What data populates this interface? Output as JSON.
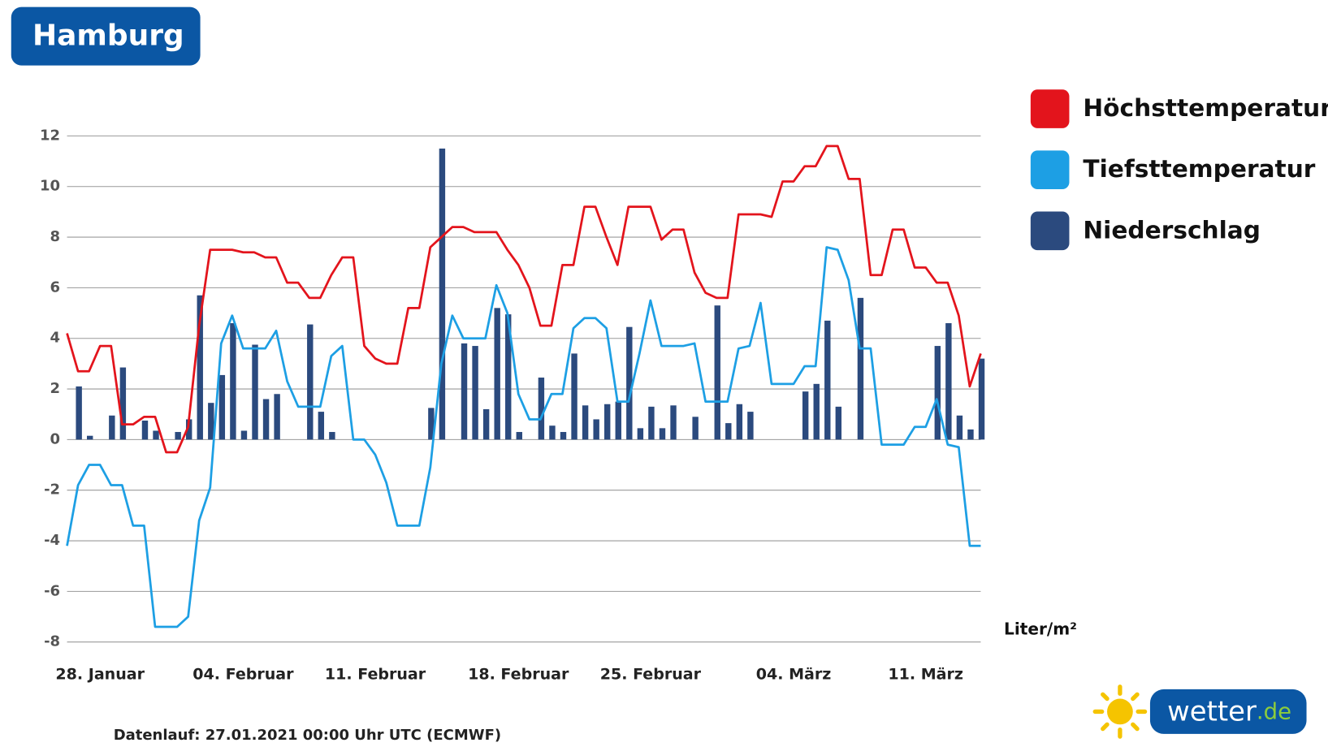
{
  "chart_data": {
    "type": "combo",
    "title": "Hamburg",
    "unit_label": "Liter/m²",
    "note": "Datenlauf: 27.01.2021 00:00 Uhr UTC (ECMWF)",
    "logo": {
      "name": "wetter",
      "tld": ".de"
    },
    "grid": true,
    "legend": "right",
    "ylim": [
      -8,
      12
    ],
    "yticks": [
      -8,
      -6,
      -4,
      -2,
      0,
      2,
      4,
      6,
      8,
      10,
      12
    ],
    "categories": [
      null,
      null,
      null,
      "28. Januar",
      null,
      null,
      null,
      null,
      null,
      null,
      null,
      null,
      null,
      null,
      null,
      null,
      "04. Februar",
      null,
      null,
      null,
      null,
      null,
      null,
      null,
      null,
      null,
      null,
      null,
      "11. Februar",
      null,
      null,
      null,
      null,
      null,
      null,
      null,
      null,
      null,
      null,
      null,
      null,
      "18. Februar",
      null,
      null,
      null,
      null,
      null,
      null,
      null,
      null,
      null,
      null,
      null,
      "25. Februar",
      null,
      null,
      null,
      null,
      null,
      null,
      null,
      null,
      null,
      null,
      null,
      null,
      "04. März",
      null,
      null,
      null,
      null,
      null,
      null,
      null,
      null,
      null,
      null,
      null,
      "11. März",
      null,
      null,
      null,
      null,
      null
    ],
    "series": [
      {
        "name": "Höchsttemperatur",
        "type": "line",
        "color": "#e3141c",
        "values": [
          4.2,
          2.7,
          2.7,
          3.7,
          3.7,
          0.6,
          0.6,
          0.9,
          0.9,
          -0.5,
          -0.5,
          0.5,
          4.5,
          7.5,
          7.5,
          7.5,
          7.4,
          7.4,
          7.2,
          7.2,
          6.2,
          6.2,
          5.6,
          5.6,
          6.5,
          7.2,
          7.2,
          3.7,
          3.2,
          3.0,
          3.0,
          5.2,
          5.2,
          7.6,
          8.0,
          8.4,
          8.4,
          8.2,
          8.2,
          8.2,
          7.5,
          6.9,
          6.0,
          4.5,
          4.5,
          6.9,
          6.9,
          9.2,
          9.2,
          8.0,
          6.9,
          9.2,
          9.2,
          9.2,
          7.9,
          8.3,
          8.3,
          6.6,
          5.8,
          5.6,
          5.6,
          8.9,
          8.9,
          8.9,
          8.8,
          10.2,
          10.2,
          10.8,
          10.8,
          11.6,
          11.6,
          10.3,
          10.3,
          6.5,
          6.5,
          8.3,
          8.3,
          6.8,
          6.8,
          6.2,
          6.2,
          4.9,
          2.1,
          3.4
        ]
      },
      {
        "name": "Tiefsttemperatur",
        "type": "line",
        "color": "#1d9fe4",
        "values": [
          -4.2,
          -1.8,
          -1.0,
          -1.0,
          -1.8,
          -1.8,
          -3.4,
          -3.4,
          -7.4,
          -7.4,
          -7.4,
          -7.0,
          -3.2,
          -1.9,
          3.8,
          4.9,
          3.6,
          3.6,
          3.6,
          4.3,
          2.3,
          1.3,
          1.3,
          1.3,
          3.3,
          3.7,
          0,
          0,
          -0.6,
          -1.7,
          -3.4,
          -3.4,
          -3.4,
          -1.1,
          3.0,
          4.9,
          4.0,
          4.0,
          4.0,
          6.1,
          5.0,
          1.8,
          0.8,
          0.8,
          1.8,
          1.8,
          4.4,
          4.8,
          4.8,
          4.4,
          1.5,
          1.5,
          3.4,
          5.5,
          3.7,
          3.7,
          3.7,
          3.8,
          1.5,
          1.5,
          1.5,
          3.6,
          3.7,
          5.4,
          2.2,
          2.2,
          2.2,
          2.9,
          2.9,
          7.6,
          7.5,
          6.3,
          3.6,
          3.6,
          -0.2,
          -0.2,
          -0.2,
          0.5,
          0.5,
          1.6,
          -0.2,
          -0.3,
          -4.2,
          -4.2
        ]
      },
      {
        "name": "Niederschlag",
        "type": "bar",
        "color": "#2b4a7e",
        "values": [
          0,
          2.1,
          0.15,
          0,
          0.95,
          2.85,
          0,
          0.75,
          0.35,
          0,
          0.3,
          0.8,
          5.7,
          1.45,
          2.55,
          4.6,
          0.35,
          3.75,
          1.6,
          1.8,
          0,
          0,
          4.55,
          1.1,
          0.3,
          0,
          0,
          0,
          0,
          0,
          0,
          0,
          0,
          1.25,
          11.5,
          0,
          3.8,
          3.7,
          1.2,
          5.2,
          4.95,
          0.3,
          0,
          2.45,
          0.55,
          0.3,
          3.4,
          1.35,
          0.8,
          1.4,
          1.5,
          4.45,
          0.45,
          1.3,
          0.45,
          1.35,
          0,
          0.9,
          0,
          5.3,
          0.65,
          1.4,
          1.1,
          0,
          0,
          0,
          0,
          1.9,
          2.2,
          4.7,
          1.3,
          0,
          5.6,
          0,
          0,
          0,
          0,
          0,
          0,
          3.7,
          4.6,
          0.95,
          0.4,
          3.2
        ]
      }
    ]
  }
}
